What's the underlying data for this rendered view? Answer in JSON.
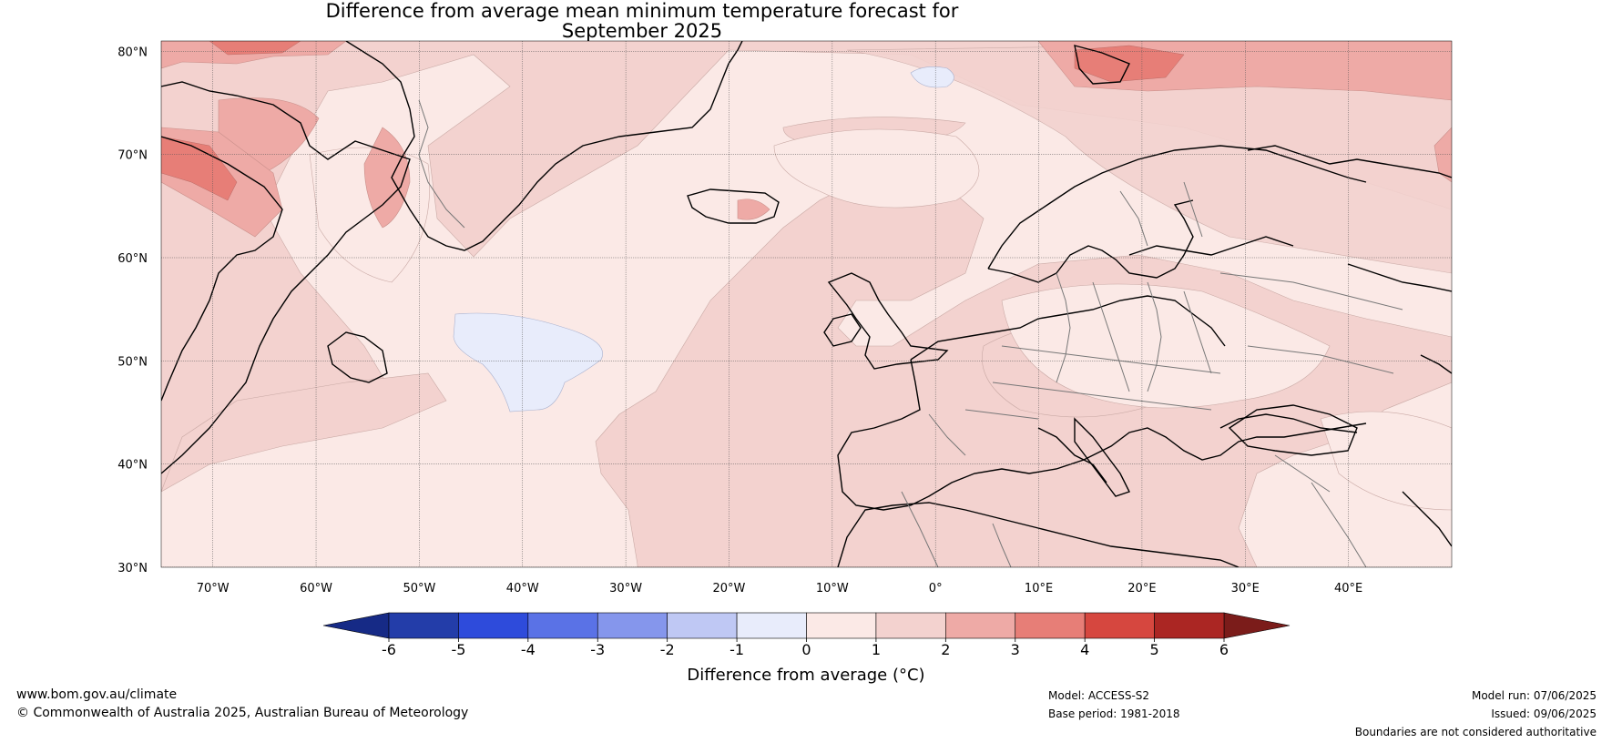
{
  "title": {
    "line1": "Difference from average mean minimum temperature forecast for",
    "line2": "September 2025"
  },
  "map": {
    "lat_labels": [
      "80°N",
      "70°N",
      "60°N",
      "50°N",
      "40°N",
      "30°N"
    ],
    "lat_values": [
      80,
      70,
      60,
      50,
      40,
      30
    ],
    "lon_labels": [
      "70°W",
      "60°W",
      "50°W",
      "40°W",
      "30°W",
      "20°W",
      "10°W",
      "0°",
      "10°E",
      "20°E",
      "30°E",
      "40°E"
    ],
    "lon_values": [
      -70,
      -60,
      -50,
      -40,
      -30,
      -20,
      -10,
      0,
      10,
      20,
      30,
      40
    ],
    "lon_range": [
      -75,
      50
    ],
    "lat_range": [
      30,
      81
    ],
    "base_color": "#fbe9e6"
  },
  "colorbar": {
    "ticks": [
      "-6",
      "-5",
      "-4",
      "-3",
      "-2",
      "-1",
      "0",
      "1",
      "2",
      "3",
      "4",
      "5",
      "6"
    ],
    "colors": [
      "#233da9",
      "#2e4bdb",
      "#5a72e6",
      "#8596ec",
      "#bfc8f4",
      "#e8ecfb",
      "#fbe9e6",
      "#f3d2cf",
      "#eeaaa6",
      "#e77e77",
      "#d6473f",
      "#ab2623"
    ],
    "under_color": "#162a86",
    "over_color": "#7b1c1a",
    "label": "Difference from average (°C)"
  },
  "footer": {
    "website": "www.bom.gov.au/climate",
    "copyright": "© Commonwealth of Australia 2025, Australian Bureau of Meteorology",
    "model": "Model: ACCESS-S2",
    "base_period": "Base period: 1981-2018",
    "model_run": "Model run: 07/06/2025",
    "issued": "Issued: 09/06/2025",
    "disclaimer": "Boundaries are not considered authoritative"
  }
}
